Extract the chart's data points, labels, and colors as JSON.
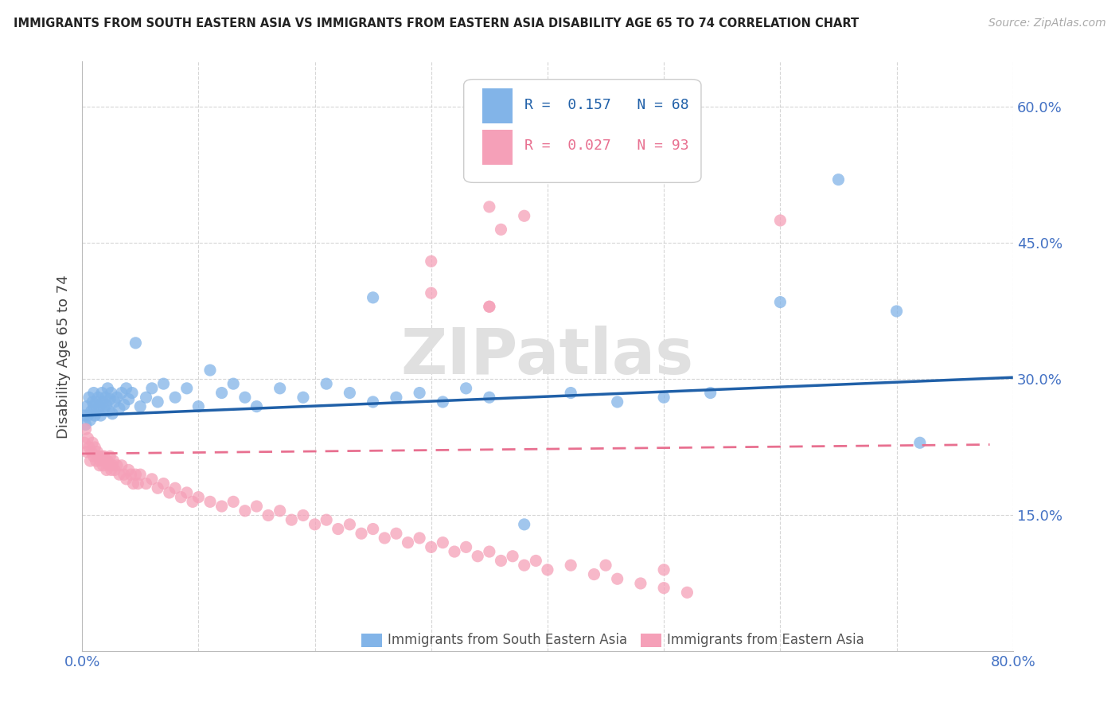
{
  "title": "IMMIGRANTS FROM SOUTH EASTERN ASIA VS IMMIGRANTS FROM EASTERN ASIA DISABILITY AGE 65 TO 74 CORRELATION CHART",
  "source": "Source: ZipAtlas.com",
  "ylabel": "Disability Age 65 to 74",
  "xlim": [
    0.0,
    0.8
  ],
  "ylim": [
    0.0,
    0.65
  ],
  "ytick_positions": [
    0.15,
    0.3,
    0.45,
    0.6
  ],
  "ytick_labels": [
    "15.0%",
    "30.0%",
    "45.0%",
    "60.0%"
  ],
  "series1_color": "#82b4e8",
  "series2_color": "#f5a0b8",
  "line1_color": "#2060a8",
  "line2_color": "#e87090",
  "series1_label": "Immigrants from South Eastern Asia",
  "series2_label": "Immigrants from Eastern Asia",
  "series1_R": "0.157",
  "series1_N": "68",
  "series2_R": "0.027",
  "series2_N": "93",
  "watermark": "ZIPatlas",
  "series1_x": [
    0.002,
    0.003,
    0.004,
    0.005,
    0.006,
    0.007,
    0.008,
    0.009,
    0.01,
    0.01,
    0.011,
    0.012,
    0.013,
    0.014,
    0.015,
    0.016,
    0.017,
    0.018,
    0.019,
    0.02,
    0.021,
    0.022,
    0.023,
    0.024,
    0.025,
    0.026,
    0.028,
    0.03,
    0.032,
    0.034,
    0.036,
    0.038,
    0.04,
    0.043,
    0.046,
    0.05,
    0.055,
    0.06,
    0.065,
    0.07,
    0.08,
    0.09,
    0.1,
    0.11,
    0.12,
    0.13,
    0.14,
    0.15,
    0.17,
    0.19,
    0.21,
    0.23,
    0.25,
    0.27,
    0.29,
    0.31,
    0.33,
    0.35,
    0.38,
    0.42,
    0.46,
    0.5,
    0.54,
    0.6,
    0.65,
    0.7,
    0.72,
    0.25
  ],
  "series1_y": [
    0.26,
    0.25,
    0.27,
    0.26,
    0.28,
    0.255,
    0.265,
    0.275,
    0.27,
    0.285,
    0.26,
    0.275,
    0.265,
    0.28,
    0.27,
    0.26,
    0.285,
    0.275,
    0.268,
    0.28,
    0.272,
    0.29,
    0.265,
    0.278,
    0.285,
    0.262,
    0.275,
    0.28,
    0.268,
    0.285,
    0.272,
    0.29,
    0.278,
    0.285,
    0.34,
    0.27,
    0.28,
    0.29,
    0.275,
    0.295,
    0.28,
    0.29,
    0.27,
    0.31,
    0.285,
    0.295,
    0.28,
    0.27,
    0.29,
    0.28,
    0.295,
    0.285,
    0.275,
    0.28,
    0.285,
    0.275,
    0.29,
    0.28,
    0.14,
    0.285,
    0.275,
    0.28,
    0.285,
    0.385,
    0.52,
    0.375,
    0.23,
    0.39
  ],
  "series2_x": [
    0.002,
    0.003,
    0.004,
    0.005,
    0.006,
    0.007,
    0.008,
    0.009,
    0.01,
    0.011,
    0.012,
    0.013,
    0.014,
    0.015,
    0.016,
    0.017,
    0.018,
    0.019,
    0.02,
    0.021,
    0.022,
    0.023,
    0.024,
    0.025,
    0.026,
    0.027,
    0.028,
    0.03,
    0.032,
    0.034,
    0.036,
    0.038,
    0.04,
    0.042,
    0.044,
    0.046,
    0.048,
    0.05,
    0.055,
    0.06,
    0.065,
    0.07,
    0.075,
    0.08,
    0.085,
    0.09,
    0.095,
    0.1,
    0.11,
    0.12,
    0.13,
    0.14,
    0.15,
    0.16,
    0.17,
    0.18,
    0.19,
    0.2,
    0.21,
    0.22,
    0.23,
    0.24,
    0.25,
    0.26,
    0.27,
    0.28,
    0.29,
    0.3,
    0.31,
    0.32,
    0.33,
    0.34,
    0.35,
    0.36,
    0.37,
    0.38,
    0.39,
    0.4,
    0.42,
    0.44,
    0.46,
    0.48,
    0.5,
    0.52,
    0.3,
    0.35,
    0.3,
    0.35,
    0.36,
    0.38,
    0.6,
    0.5,
    0.45,
    0.35
  ],
  "series2_y": [
    0.23,
    0.245,
    0.22,
    0.235,
    0.225,
    0.21,
    0.22,
    0.23,
    0.215,
    0.225,
    0.21,
    0.22,
    0.215,
    0.205,
    0.21,
    0.215,
    0.205,
    0.215,
    0.21,
    0.2,
    0.21,
    0.205,
    0.215,
    0.2,
    0.205,
    0.21,
    0.2,
    0.205,
    0.195,
    0.205,
    0.195,
    0.19,
    0.2,
    0.195,
    0.185,
    0.195,
    0.185,
    0.195,
    0.185,
    0.19,
    0.18,
    0.185,
    0.175,
    0.18,
    0.17,
    0.175,
    0.165,
    0.17,
    0.165,
    0.16,
    0.165,
    0.155,
    0.16,
    0.15,
    0.155,
    0.145,
    0.15,
    0.14,
    0.145,
    0.135,
    0.14,
    0.13,
    0.135,
    0.125,
    0.13,
    0.12,
    0.125,
    0.115,
    0.12,
    0.11,
    0.115,
    0.105,
    0.11,
    0.1,
    0.105,
    0.095,
    0.1,
    0.09,
    0.095,
    0.085,
    0.08,
    0.075,
    0.07,
    0.065,
    0.395,
    0.38,
    0.43,
    0.49,
    0.465,
    0.48,
    0.475,
    0.09,
    0.095,
    0.38
  ],
  "trend1_x_start": 0.0,
  "trend1_x_end": 0.8,
  "trend1_y_start": 0.26,
  "trend1_y_end": 0.302,
  "trend2_x_start": 0.0,
  "trend2_x_end": 0.78,
  "trend2_y_start": 0.218,
  "trend2_y_end": 0.228,
  "background_color": "#ffffff",
  "grid_color": "#cccccc",
  "title_color": "#222222",
  "axis_label_color": "#444444",
  "ytick_color": "#4472c4",
  "xtick_color": "#4472c4"
}
